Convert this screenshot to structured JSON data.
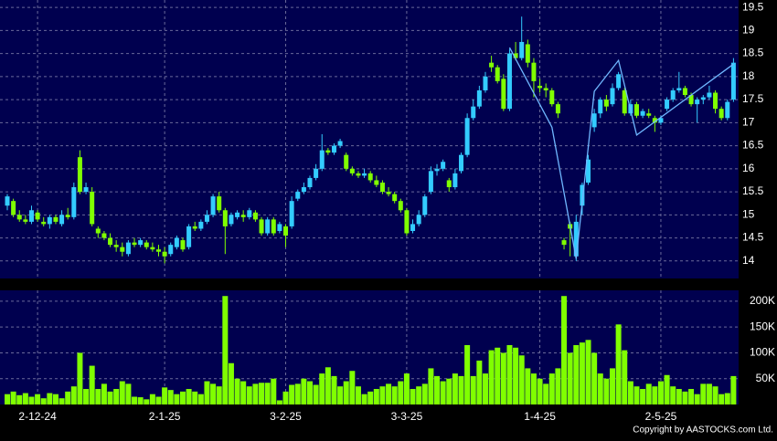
{
  "chart_data": {
    "type": "candlestick",
    "categories": [
      null,
      null,
      null,
      null,
      null,
      "2-12-24",
      null,
      null,
      null,
      null,
      null,
      null,
      null,
      null,
      null,
      null,
      null,
      null,
      null,
      null,
      null,
      null,
      null,
      null,
      null,
      null,
      "2-1-25",
      null,
      null,
      null,
      null,
      null,
      null,
      null,
      null,
      null,
      null,
      null,
      null,
      null,
      null,
      null,
      null,
      null,
      null,
      null,
      "3-2-25",
      null,
      null,
      null,
      null,
      null,
      null,
      null,
      null,
      null,
      null,
      null,
      null,
      null,
      null,
      null,
      null,
      null,
      null,
      null,
      "3-3-25",
      null,
      null,
      null,
      null,
      null,
      null,
      null,
      null,
      null,
      null,
      null,
      null,
      null,
      null,
      null,
      null,
      null,
      null,
      null,
      null,
      null,
      "1-4-25",
      null,
      null,
      null,
      null,
      null,
      null,
      null,
      null,
      null,
      null,
      null,
      null,
      null,
      null,
      null,
      null,
      null,
      null,
      null,
      "2-5-25",
      null,
      null,
      null,
      null,
      null,
      null,
      null,
      null,
      null,
      null,
      null,
      null
    ],
    "ohlc": [
      [
        15.2,
        15.45,
        15.1,
        15.4
      ],
      [
        15.3,
        15.35,
        14.95,
        15.0
      ],
      [
        15.0,
        15.1,
        14.85,
        14.9
      ],
      [
        14.9,
        15.0,
        14.8,
        14.85
      ],
      [
        14.85,
        15.2,
        14.8,
        15.1
      ],
      [
        15.05,
        15.1,
        14.85,
        14.9
      ],
      [
        14.85,
        14.95,
        14.75,
        14.8
      ],
      [
        14.8,
        15.0,
        14.7,
        14.95
      ],
      [
        14.95,
        15.0,
        14.8,
        14.85
      ],
      [
        14.8,
        15.1,
        14.75,
        15.0
      ],
      [
        15.0,
        15.15,
        14.9,
        14.95
      ],
      [
        14.95,
        15.7,
        14.9,
        15.6
      ],
      [
        16.25,
        16.4,
        15.45,
        15.5
      ],
      [
        15.5,
        15.7,
        15.45,
        15.6
      ],
      [
        15.5,
        15.6,
        14.75,
        14.8
      ],
      [
        14.7,
        14.75,
        14.5,
        14.6
      ],
      [
        14.6,
        14.65,
        14.45,
        14.5
      ],
      [
        14.5,
        14.6,
        14.3,
        14.35
      ],
      [
        14.35,
        14.45,
        14.2,
        14.3
      ],
      [
        14.3,
        14.4,
        14.1,
        14.2
      ],
      [
        14.15,
        14.45,
        14.1,
        14.4
      ],
      [
        14.4,
        14.5,
        14.3,
        14.35
      ],
      [
        14.35,
        14.5,
        14.3,
        14.45
      ],
      [
        14.4,
        14.45,
        14.25,
        14.3
      ],
      [
        14.3,
        14.4,
        14.2,
        14.25
      ],
      [
        14.25,
        14.35,
        14.1,
        14.2
      ],
      [
        14.2,
        14.3,
        13.95,
        14.1
      ],
      [
        14.15,
        14.4,
        14.1,
        14.35
      ],
      [
        14.3,
        14.55,
        14.25,
        14.5
      ],
      [
        14.45,
        14.5,
        14.2,
        14.25
      ],
      [
        14.3,
        14.8,
        14.25,
        14.75
      ],
      [
        14.75,
        14.85,
        14.65,
        14.7
      ],
      [
        14.7,
        14.9,
        14.65,
        14.85
      ],
      [
        14.85,
        15.1,
        14.8,
        15.0
      ],
      [
        15.0,
        15.45,
        14.95,
        15.4
      ],
      [
        15.4,
        15.5,
        15.05,
        15.1
      ],
      [
        15.1,
        15.15,
        14.15,
        14.75
      ],
      [
        14.8,
        15.05,
        14.75,
        15.0
      ],
      [
        14.95,
        15.1,
        14.9,
        15.05
      ],
      [
        15.0,
        15.1,
        14.85,
        14.95
      ],
      [
        14.95,
        15.15,
        14.9,
        15.1
      ],
      [
        15.05,
        15.1,
        14.85,
        14.9
      ],
      [
        14.9,
        14.95,
        14.55,
        14.6
      ],
      [
        14.6,
        14.95,
        14.55,
        14.9
      ],
      [
        14.9,
        14.95,
        14.55,
        14.6
      ],
      [
        14.65,
        14.85,
        14.6,
        14.8
      ],
      [
        14.75,
        14.8,
        14.3,
        14.55
      ],
      [
        14.75,
        15.4,
        14.7,
        15.3
      ],
      [
        15.35,
        15.55,
        15.3,
        15.5
      ],
      [
        15.5,
        15.7,
        15.45,
        15.6
      ],
      [
        15.6,
        15.85,
        15.55,
        15.8
      ],
      [
        15.8,
        16.1,
        15.75,
        16.0
      ],
      [
        16.0,
        16.75,
        15.95,
        16.4
      ],
      [
        16.4,
        16.45,
        16.3,
        16.35
      ],
      [
        16.35,
        16.55,
        16.3,
        16.5
      ],
      [
        16.5,
        16.65,
        16.45,
        16.6
      ],
      [
        16.3,
        16.35,
        15.95,
        16.0
      ],
      [
        16.0,
        16.05,
        15.85,
        15.9
      ],
      [
        15.9,
        15.95,
        15.8,
        15.85
      ],
      [
        15.85,
        16.0,
        15.8,
        15.9
      ],
      [
        15.9,
        15.95,
        15.7,
        15.75
      ],
      [
        15.75,
        15.85,
        15.6,
        15.65
      ],
      [
        15.7,
        15.75,
        15.45,
        15.5
      ],
      [
        15.5,
        15.6,
        15.4,
        15.45
      ],
      [
        15.45,
        15.5,
        15.25,
        15.3
      ],
      [
        15.3,
        15.35,
        15.05,
        15.1
      ],
      [
        15.1,
        15.15,
        14.55,
        14.6
      ],
      [
        14.65,
        14.9,
        14.6,
        14.8
      ],
      [
        14.8,
        15.1,
        14.75,
        15.0
      ],
      [
        15.0,
        15.45,
        14.95,
        15.4
      ],
      [
        15.5,
        16.05,
        15.45,
        15.95
      ],
      [
        15.95,
        16.1,
        15.85,
        16.0
      ],
      [
        16.0,
        16.2,
        15.95,
        16.15
      ],
      [
        15.75,
        15.8,
        15.5,
        15.6
      ],
      [
        15.6,
        16.0,
        15.55,
        15.9
      ],
      [
        15.95,
        16.35,
        15.9,
        16.3
      ],
      [
        16.3,
        17.2,
        16.25,
        17.1
      ],
      [
        17.1,
        17.5,
        17.05,
        17.35
      ],
      [
        17.35,
        17.8,
        17.3,
        17.7
      ],
      [
        17.7,
        18.1,
        17.65,
        18.0
      ],
      [
        18.3,
        18.45,
        18.1,
        18.2
      ],
      [
        18.2,
        18.25,
        17.85,
        17.9
      ],
      [
        17.95,
        18.05,
        17.25,
        17.3
      ],
      [
        17.3,
        18.6,
        17.25,
        18.5
      ],
      [
        18.5,
        18.75,
        18.35,
        18.4
      ],
      [
        18.4,
        19.3,
        18.35,
        18.75
      ],
      [
        18.7,
        18.8,
        18.2,
        18.3
      ],
      [
        18.3,
        18.4,
        17.55,
        17.9
      ],
      [
        17.8,
        17.95,
        17.65,
        17.75
      ],
      [
        17.75,
        17.85,
        17.55,
        17.7
      ],
      [
        17.7,
        17.75,
        17.35,
        17.4
      ],
      [
        17.4,
        17.45,
        17.1,
        17.2
      ],
      [
        14.45,
        14.5,
        14.25,
        14.35
      ],
      [
        14.8,
        14.85,
        14.1,
        14.7
      ],
      [
        14.1,
        15.0,
        14.0,
        14.85
      ],
      [
        15.2,
        15.7,
        15.0,
        15.65
      ],
      [
        15.7,
        16.3,
        15.65,
        16.2
      ],
      [
        16.9,
        17.3,
        16.8,
        17.2
      ],
      [
        17.2,
        17.55,
        17.1,
        17.5
      ],
      [
        17.5,
        17.6,
        17.25,
        17.35
      ],
      [
        17.4,
        17.85,
        17.35,
        17.75
      ],
      [
        17.75,
        18.1,
        17.7,
        18.05
      ],
      [
        17.7,
        17.75,
        17.15,
        17.2
      ],
      [
        17.2,
        17.5,
        17.15,
        17.4
      ],
      [
        17.4,
        17.45,
        17.1,
        17.15
      ],
      [
        17.15,
        17.3,
        17.1,
        17.25
      ],
      [
        17.2,
        17.3,
        17.1,
        17.15
      ],
      [
        17.1,
        17.15,
        16.8,
        17.0
      ],
      [
        17.0,
        17.15,
        16.95,
        17.1
      ],
      [
        17.3,
        17.55,
        17.25,
        17.5
      ],
      [
        17.5,
        17.75,
        17.45,
        17.7
      ],
      [
        17.7,
        18.1,
        17.65,
        17.75
      ],
      [
        17.75,
        17.8,
        17.55,
        17.6
      ],
      [
        17.6,
        17.65,
        17.35,
        17.4
      ],
      [
        17.4,
        17.55,
        17.0,
        17.5
      ],
      [
        17.5,
        17.6,
        17.4,
        17.55
      ],
      [
        17.55,
        17.8,
        17.5,
        17.65
      ],
      [
        17.65,
        17.7,
        17.2,
        17.3
      ],
      [
        17.3,
        17.35,
        17.05,
        17.1
      ],
      [
        17.1,
        17.5,
        17.05,
        17.45
      ],
      [
        17.5,
        18.4,
        17.45,
        18.3
      ]
    ],
    "up_color": "#33ccff",
    "down_color": "#80ff00",
    "ylim": [
      13.62,
      19.66
    ],
    "yticks": [
      14,
      14.5,
      15,
      15.5,
      16,
      16.5,
      17,
      17.5,
      18,
      18.5,
      19,
      19.5
    ],
    "overlay": {
      "color": "#6fb7ff",
      "x": [
        83,
        90,
        94,
        97,
        101,
        104,
        120
      ],
      "values": [
        18.63,
        16.9,
        14.05,
        17.68,
        18.35,
        16.73,
        18.27
      ]
    },
    "volume": {
      "color": "#80ff00",
      "ylim": [
        0,
        221000
      ],
      "yticks": [
        {
          "value": 50000,
          "label": "50K"
        },
        {
          "value": 100000,
          "label": "100K"
        },
        {
          "value": 150000,
          "label": "150K"
        },
        {
          "value": 200000,
          "label": "200K"
        }
      ],
      "values": [
        20000,
        25000,
        18000,
        22000,
        15000,
        20000,
        12000,
        22000,
        20000,
        12000,
        25000,
        35000,
        100000,
        30000,
        75000,
        30000,
        40000,
        25000,
        30000,
        45000,
        40000,
        15000,
        14000,
        10000,
        20000,
        15000,
        33000,
        28000,
        20000,
        25000,
        30000,
        25000,
        20000,
        45000,
        40000,
        35000,
        210000,
        80000,
        50000,
        45000,
        35000,
        40000,
        42000,
        42000,
        50000,
        8000,
        25000,
        38000,
        40000,
        50000,
        45000,
        38000,
        60000,
        72000,
        55000,
        35000,
        45000,
        65000,
        35000,
        20000,
        25000,
        30000,
        35000,
        40000,
        35000,
        45000,
        60000,
        30000,
        35000,
        40000,
        70000,
        55000,
        45000,
        50000,
        60000,
        55000,
        115000,
        55000,
        85000,
        60000,
        105000,
        110000,
        100000,
        115000,
        110000,
        95000,
        70000,
        60000,
        50000,
        40000,
        60000,
        70000,
        210000,
        100000,
        115000,
        120000,
        125000,
        100000,
        60000,
        50000,
        70000,
        155000,
        105000,
        45000,
        35000,
        30000,
        40000,
        35000,
        45000,
        57000,
        35000,
        30000,
        25000,
        30000,
        20000,
        40000,
        40000,
        35000,
        20000,
        22000,
        55000
      ]
    },
    "grid": true,
    "copyright": "Copyright by AASTOCKS.com Ltd."
  }
}
